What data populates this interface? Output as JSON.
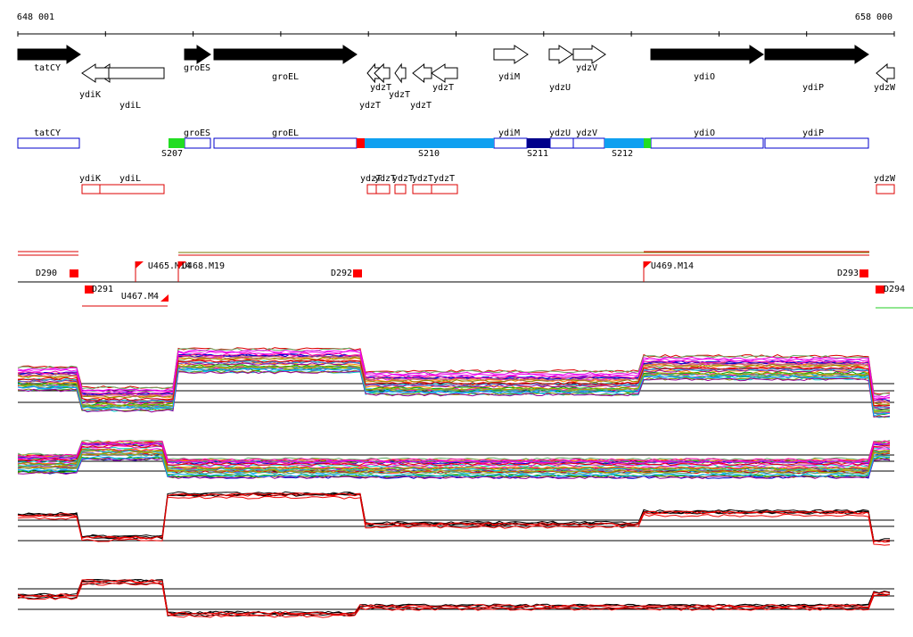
{
  "ruler": {
    "start": "648 001",
    "end": "658 000"
  },
  "gene_track": {
    "genes": [
      "tatCY",
      "ydiK",
      "ydiL",
      "groES",
      "groEL",
      "ydzT",
      "ydzT",
      "ydzT",
      "ydzT",
      "ydzT",
      "ydiM",
      "ydzU",
      "ydzV",
      "ydiO",
      "ydiP",
      "ydzW"
    ]
  },
  "segment_track": {
    "forward": [
      "tatCY",
      "groES",
      "groEL",
      "ydiM",
      "ydzU",
      "ydzV",
      "ydiO",
      "ydiP"
    ],
    "segments": [
      "S207",
      "S210",
      "S211",
      "S212"
    ],
    "reverse": [
      "ydiK",
      "ydiL",
      "ydzT",
      "ydzT",
      "ydzT",
      "ydzT",
      "ydzT",
      "ydzW"
    ]
  },
  "features": {
    "labels": [
      "D290",
      "D291",
      "U465.M14",
      "U468.M19",
      "U467.M4",
      "D292",
      "U469.M14",
      "D293",
      "D294"
    ]
  }
}
